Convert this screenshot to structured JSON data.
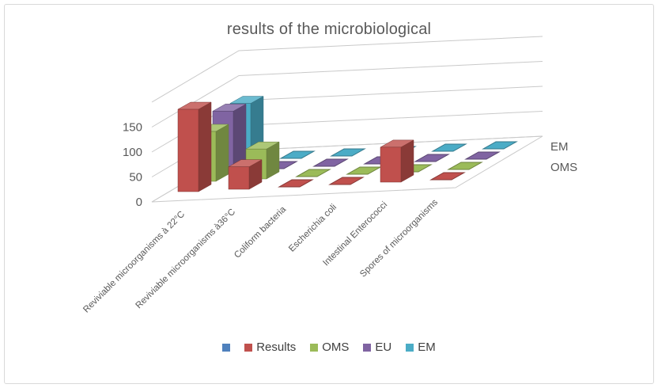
{
  "title": "results of the microbiological",
  "chart_data": {
    "type": "bar",
    "subtype": "3d-column",
    "title": "results of the microbiological",
    "categories": [
      "Reviviable microorganisms à 22°C",
      "Reviviable microorganisms à36°C",
      "Coliform bacteria",
      "Escherichia coli",
      "Intestinal Enterococci",
      "Spores of microorganisms"
    ],
    "series": [
      {
        "name": "",
        "color": "#4F81BD",
        "values": [
          null,
          null,
          null,
          null,
          null,
          null
        ]
      },
      {
        "name": "Results",
        "color": "#C0504D",
        "values": [
          165,
          45,
          0,
          0,
          70,
          0
        ]
      },
      {
        "name": "OMS",
        "color": "#9BBB59",
        "values": [
          100,
          60,
          0,
          0,
          0,
          0
        ]
      },
      {
        "name": "EU",
        "color": "#8064A2",
        "values": [
          120,
          0,
          0,
          0,
          0,
          0
        ]
      },
      {
        "name": "EM",
        "color": "#4BACC6",
        "values": [
          115,
          0,
          0,
          0,
          0,
          0
        ]
      }
    ],
    "y_ticks": [
      0,
      50,
      100,
      150
    ],
    "ylim": [
      0,
      200
    ],
    "depth_axis_labels": [
      "EM",
      "OMS"
    ],
    "legend_position": "bottom",
    "grid": true,
    "grid_color": "#c9c9c9",
    "axis_text_color": "#595959",
    "legend_text_color": "#404040"
  }
}
